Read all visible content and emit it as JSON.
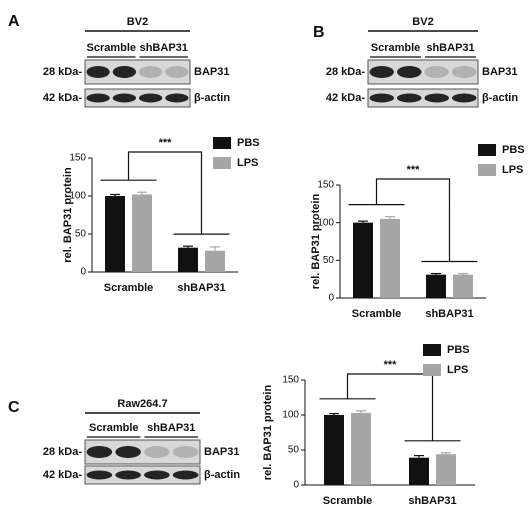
{
  "panels": [
    {
      "label": "A",
      "blot": {
        "cell_line": "BV2",
        "lanes": [
          "Scramble",
          "shBAP31"
        ],
        "rows": [
          {
            "size": "28 kDa-",
            "protein": "BAP31"
          },
          {
            "size": "42 kDa-",
            "protein": "β-actin"
          }
        ]
      }
    },
    {
      "label": "B",
      "blot": {
        "cell_line": "BV2",
        "lanes": [
          "Scramble",
          "shBAP31"
        ],
        "rows": [
          {
            "size": "28 kDa-",
            "protein": "BAP31"
          },
          {
            "size": "42 kDa-",
            "protein": "β-actin"
          }
        ]
      }
    },
    {
      "label": "C",
      "blot": {
        "cell_line": "Raw264.7",
        "lanes": [
          "Scramble",
          "shBAP31"
        ],
        "rows": [
          {
            "size": "28 kDa-",
            "protein": "BAP31"
          },
          {
            "size": "42 kDa-",
            "protein": "β-actin"
          }
        ]
      }
    }
  ],
  "chart_data": [
    {
      "type": "bar",
      "y_label": "rel. BAP31 protein",
      "categories": [
        "Scramble",
        "shBAP31"
      ],
      "series": [
        {
          "name": "PBS",
          "color": "#111111",
          "values": [
            100,
            32
          ],
          "errors": [
            2,
            2
          ]
        },
        {
          "name": "LPS",
          "color": "#a6a6a6",
          "values": [
            102,
            28
          ],
          "errors": [
            3,
            5
          ]
        }
      ],
      "ylim": [
        0,
        150
      ],
      "yticks": [
        0,
        50,
        100,
        150
      ],
      "annotation": "***"
    },
    {
      "type": "bar",
      "y_label": "rel. BAP31 protein",
      "categories": [
        "Scramble",
        "shBAP31"
      ],
      "series": [
        {
          "name": "PBS",
          "color": "#111111",
          "values": [
            100,
            31
          ],
          "errors": [
            2,
            1.5
          ]
        },
        {
          "name": "LPS",
          "color": "#a6a6a6",
          "values": [
            105,
            31
          ],
          "errors": [
            3,
            1.5
          ]
        }
      ],
      "ylim": [
        0,
        150
      ],
      "yticks": [
        0,
        50,
        100,
        150
      ],
      "annotation": "***"
    },
    {
      "type": "bar",
      "y_label": "rel. BAP31 protein",
      "categories": [
        "Scramble",
        "shBAP31"
      ],
      "series": [
        {
          "name": "PBS",
          "color": "#111111",
          "values": [
            100,
            39
          ],
          "errors": [
            2,
            3
          ]
        },
        {
          "name": "LPS",
          "color": "#a6a6a6",
          "values": [
            103,
            44
          ],
          "errors": [
            3,
            2
          ]
        }
      ],
      "ylim": [
        0,
        150
      ],
      "yticks": [
        0,
        50,
        100,
        150
      ],
      "annotation": "***"
    }
  ]
}
